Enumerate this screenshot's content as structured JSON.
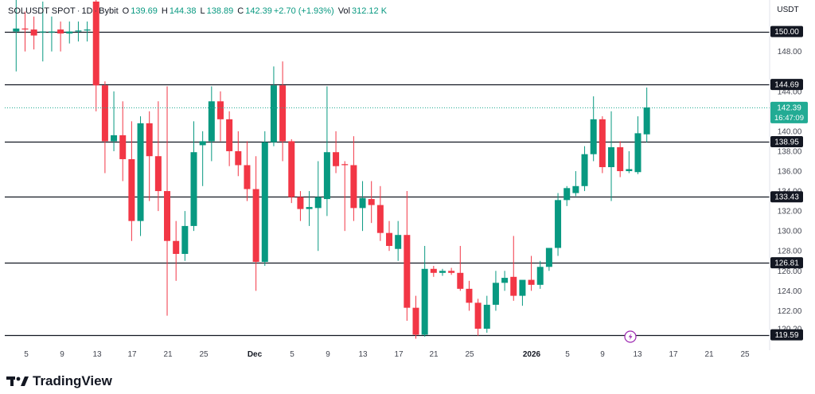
{
  "header": {
    "symbol": "SOLUSDT SPOT",
    "interval": "1D",
    "exchange": "Bybit",
    "open_label": "O",
    "open": "139.69",
    "high_label": "H",
    "high": "144.38",
    "low_label": "L",
    "low": "138.89",
    "close_label": "C",
    "close": "142.39",
    "change": "+2.70 (+1.93%)",
    "vol_label": "Vol",
    "vol": "312.12 K"
  },
  "currency": "USDT",
  "logo": {
    "text": "TradingView"
  },
  "colors": {
    "up": "#089981",
    "down": "#f23645",
    "line": "#131722",
    "axis": "#434651",
    "last_price": "#22ab94"
  },
  "price_axis": {
    "ticks": [
      "148.00",
      "144.00",
      "140.00",
      "138.00",
      "136.00",
      "134.00",
      "132.00",
      "130.00",
      "128.00",
      "126.00",
      "124.00",
      "122.00",
      "120.20"
    ],
    "last_price": "142.39",
    "countdown": "16:47:09"
  },
  "time_axis": {
    "ticks": [
      "5",
      "9",
      "13",
      "17",
      "21",
      "25",
      "Dec",
      "5",
      "9",
      "13",
      "17",
      "21",
      "25",
      "2026",
      "5",
      "9",
      "13",
      "17",
      "21",
      "25"
    ]
  },
  "chart_data": {
    "type": "candlestick",
    "y_range": [
      119.0,
      153.0
    ],
    "horizontal_levels": [
      150.0,
      144.69,
      138.95,
      133.43,
      126.81,
      119.59
    ],
    "horizontal_level_labels": [
      "150.00",
      "144.69",
      "138.95",
      "133.43",
      "126.81",
      "119.59"
    ],
    "last_price": 142.39,
    "candles": [
      {
        "o": 150.0,
        "h": 154.0,
        "l": 146.0,
        "c": 150.3
      },
      {
        "o": 150.3,
        "h": 152.0,
        "l": 148.0,
        "c": 150.2
      },
      {
        "o": 150.2,
        "h": 151.5,
        "l": 148.2,
        "c": 149.6
      },
      {
        "o": 150.0,
        "h": 153.0,
        "l": 147.0,
        "c": 150.0
      },
      {
        "o": 150.0,
        "h": 151.5,
        "l": 148.0,
        "c": 150.0
      },
      {
        "o": 150.2,
        "h": 151.0,
        "l": 148.0,
        "c": 149.8
      },
      {
        "o": 149.8,
        "h": 151.0,
        "l": 148.8,
        "c": 150.0
      },
      {
        "o": 150.0,
        "h": 151.0,
        "l": 149.0,
        "c": 150.1
      },
      {
        "o": 150.1,
        "h": 151.0,
        "l": 149.0,
        "c": 150.2
      },
      {
        "o": 153.0,
        "h": 154.0,
        "l": 142.0,
        "c": 144.6
      },
      {
        "o": 144.6,
        "h": 145.0,
        "l": 135.8,
        "c": 139.0
      },
      {
        "o": 139.0,
        "h": 144.0,
        "l": 138.0,
        "c": 139.6
      },
      {
        "o": 139.6,
        "h": 143.0,
        "l": 135.0,
        "c": 137.2
      },
      {
        "o": 137.2,
        "h": 141.0,
        "l": 129.0,
        "c": 131.0
      },
      {
        "o": 131.0,
        "h": 141.5,
        "l": 129.5,
        "c": 140.8
      },
      {
        "o": 140.8,
        "h": 142.0,
        "l": 133.0,
        "c": 137.5
      },
      {
        "o": 137.5,
        "h": 143.0,
        "l": 132.0,
        "c": 134.0
      },
      {
        "o": 134.0,
        "h": 144.5,
        "l": 121.5,
        "c": 129.0
      },
      {
        "o": 129.0,
        "h": 131.0,
        "l": 125.0,
        "c": 127.7
      },
      {
        "o": 127.7,
        "h": 132.0,
        "l": 127.0,
        "c": 130.5
      },
      {
        "o": 130.5,
        "h": 141.0,
        "l": 130.0,
        "c": 137.9
      },
      {
        "o": 138.6,
        "h": 140.0,
        "l": 134.5,
        "c": 139.0
      },
      {
        "o": 139.0,
        "h": 144.5,
        "l": 137.0,
        "c": 143.0
      },
      {
        "o": 143.0,
        "h": 144.0,
        "l": 139.0,
        "c": 141.2
      },
      {
        "o": 141.2,
        "h": 142.0,
        "l": 136.5,
        "c": 138.0
      },
      {
        "o": 138.0,
        "h": 140.0,
        "l": 135.5,
        "c": 136.6
      },
      {
        "o": 136.6,
        "h": 139.0,
        "l": 133.0,
        "c": 134.2
      },
      {
        "o": 134.2,
        "h": 137.5,
        "l": 124.0,
        "c": 126.9
      },
      {
        "o": 126.9,
        "h": 140.0,
        "l": 126.5,
        "c": 138.9
      },
      {
        "o": 138.9,
        "h": 146.5,
        "l": 138.5,
        "c": 144.6
      },
      {
        "o": 144.6,
        "h": 147.0,
        "l": 137.0,
        "c": 139.0
      },
      {
        "o": 139.0,
        "h": 139.2,
        "l": 132.8,
        "c": 133.4
      },
      {
        "o": 133.4,
        "h": 134.0,
        "l": 131.0,
        "c": 132.2
      },
      {
        "o": 132.2,
        "h": 134.0,
        "l": 130.5,
        "c": 132.4
      },
      {
        "o": 132.3,
        "h": 137.0,
        "l": 128.0,
        "c": 133.4
      },
      {
        "o": 133.2,
        "h": 144.5,
        "l": 131.5,
        "c": 137.9
      },
      {
        "o": 137.9,
        "h": 140.0,
        "l": 135.8,
        "c": 136.5
      },
      {
        "o": 136.7,
        "h": 137.0,
        "l": 130.0,
        "c": 136.6
      },
      {
        "o": 136.6,
        "h": 139.5,
        "l": 131.0,
        "c": 132.3
      },
      {
        "o": 132.3,
        "h": 135.0,
        "l": 130.0,
        "c": 133.3
      },
      {
        "o": 133.2,
        "h": 135.0,
        "l": 130.8,
        "c": 132.6
      },
      {
        "o": 132.6,
        "h": 134.5,
        "l": 129.0,
        "c": 129.8
      },
      {
        "o": 129.8,
        "h": 131.0,
        "l": 128.0,
        "c": 128.5
      },
      {
        "o": 128.2,
        "h": 131.0,
        "l": 127.0,
        "c": 129.6
      },
      {
        "o": 129.6,
        "h": 134.0,
        "l": 121.0,
        "c": 122.3
      },
      {
        "o": 122.3,
        "h": 123.5,
        "l": 119.2,
        "c": 119.6
      },
      {
        "o": 119.6,
        "h": 128.5,
        "l": 119.4,
        "c": 126.2
      },
      {
        "o": 126.2,
        "h": 126.5,
        "l": 125.4,
        "c": 125.8
      },
      {
        "o": 125.8,
        "h": 126.2,
        "l": 125.5,
        "c": 126.0
      },
      {
        "o": 126.0,
        "h": 126.3,
        "l": 125.6,
        "c": 125.8
      },
      {
        "o": 125.8,
        "h": 128.5,
        "l": 124.0,
        "c": 124.2
      },
      {
        "o": 124.2,
        "h": 125.0,
        "l": 122.0,
        "c": 122.8
      },
      {
        "o": 122.8,
        "h": 123.2,
        "l": 119.5,
        "c": 120.2
      },
      {
        "o": 120.2,
        "h": 123.5,
        "l": 119.8,
        "c": 122.6
      },
      {
        "o": 122.6,
        "h": 126.0,
        "l": 122.0,
        "c": 124.8
      },
      {
        "o": 124.8,
        "h": 126.0,
        "l": 124.0,
        "c": 125.3
      },
      {
        "o": 125.4,
        "h": 129.5,
        "l": 123.0,
        "c": 123.5
      },
      {
        "o": 123.5,
        "h": 125.0,
        "l": 122.5,
        "c": 125.1
      },
      {
        "o": 125.1,
        "h": 127.5,
        "l": 124.0,
        "c": 124.6
      },
      {
        "o": 124.6,
        "h": 127.0,
        "l": 124.2,
        "c": 126.4
      },
      {
        "o": 126.4,
        "h": 128.0,
        "l": 126.0,
        "c": 128.3
      },
      {
        "o": 128.3,
        "h": 133.8,
        "l": 127.5,
        "c": 133.1
      },
      {
        "o": 133.1,
        "h": 134.5,
        "l": 132.5,
        "c": 134.3
      },
      {
        "o": 133.8,
        "h": 136.0,
        "l": 133.5,
        "c": 134.5
      },
      {
        "o": 134.5,
        "h": 138.5,
        "l": 134.0,
        "c": 137.7
      },
      {
        "o": 137.7,
        "h": 143.5,
        "l": 137.0,
        "c": 141.2
      },
      {
        "o": 141.2,
        "h": 141.5,
        "l": 135.8,
        "c": 136.4
      },
      {
        "o": 136.4,
        "h": 142.0,
        "l": 133.0,
        "c": 138.4
      },
      {
        "o": 138.4,
        "h": 139.0,
        "l": 135.4,
        "c": 136.0
      },
      {
        "o": 136.0,
        "h": 138.0,
        "l": 135.8,
        "c": 136.2
      },
      {
        "o": 135.9,
        "h": 141.5,
        "l": 135.7,
        "c": 139.8
      },
      {
        "o": 139.69,
        "h": 144.38,
        "l": 138.89,
        "c": 142.39
      }
    ]
  }
}
